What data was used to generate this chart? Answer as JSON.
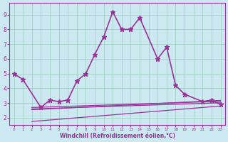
{
  "xlabel": "Windchill (Refroidissement éolien,°C)",
  "background_color": "#cce8f0",
  "grid_color": "#99ccbb",
  "line_color": "#993399",
  "xlim": [
    -0.5,
    23.5
  ],
  "ylim": [
    1.5,
    9.8
  ],
  "xticks": [
    0,
    1,
    2,
    3,
    4,
    5,
    6,
    7,
    8,
    9,
    10,
    11,
    12,
    13,
    14,
    15,
    16,
    17,
    18,
    19,
    20,
    21,
    22,
    23
  ],
  "yticks": [
    2,
    3,
    4,
    5,
    6,
    7,
    8,
    9
  ],
  "main_series": {
    "x": [
      0,
      1,
      3,
      4,
      5,
      6,
      7,
      8,
      9,
      10,
      11,
      12,
      13,
      14,
      16,
      17,
      18,
      19,
      21,
      22,
      23
    ],
    "y": [
      5.0,
      4.6,
      2.7,
      3.2,
      3.1,
      3.2,
      4.5,
      5.0,
      6.3,
      7.5,
      9.2,
      8.0,
      8.0,
      8.8,
      6.0,
      6.8,
      4.2,
      3.6,
      3.1,
      3.2,
      2.9
    ]
  },
  "flat_lines": [
    {
      "x": [
        2,
        3,
        4,
        5,
        6,
        7,
        8,
        9,
        10,
        11,
        12,
        13,
        14,
        15,
        16,
        17,
        18,
        19,
        20,
        21,
        22,
        23
      ],
      "y": [
        2.6,
        2.62,
        2.64,
        2.66,
        2.68,
        2.7,
        2.72,
        2.74,
        2.76,
        2.78,
        2.8,
        2.82,
        2.84,
        2.86,
        2.88,
        2.9,
        2.92,
        2.94,
        2.96,
        2.98,
        3.0,
        3.02
      ]
    },
    {
      "x": [
        2,
        3,
        4,
        5,
        6,
        7,
        8,
        9,
        10,
        11,
        12,
        13,
        14,
        15,
        16,
        17,
        18,
        19,
        20,
        21,
        22,
        23
      ],
      "y": [
        2.7,
        2.72,
        2.74,
        2.76,
        2.78,
        2.8,
        2.82,
        2.84,
        2.86,
        2.88,
        2.9,
        2.92,
        2.94,
        2.96,
        2.98,
        3.0,
        3.02,
        3.04,
        3.06,
        3.08,
        3.1,
        3.12
      ]
    },
    {
      "x": [
        2,
        3,
        4,
        5,
        6,
        7,
        8,
        9,
        10,
        11,
        12,
        13,
        14,
        15,
        16,
        17,
        18,
        19,
        20,
        21,
        22,
        23
      ],
      "y": [
        2.55,
        2.58,
        2.61,
        2.64,
        2.67,
        2.7,
        2.73,
        2.76,
        2.79,
        2.82,
        2.85,
        2.88,
        2.91,
        2.94,
        2.97,
        3.0,
        3.03,
        3.06,
        3.09,
        3.12,
        3.15,
        3.18
      ]
    },
    {
      "x": [
        2,
        3,
        4,
        5,
        6,
        7,
        8,
        9,
        10,
        11,
        12,
        13,
        14,
        15,
        16,
        17,
        18,
        19,
        20,
        21,
        22,
        23
      ],
      "y": [
        1.75,
        1.8,
        1.85,
        1.9,
        1.95,
        2.0,
        2.05,
        2.1,
        2.15,
        2.2,
        2.25,
        2.3,
        2.35,
        2.4,
        2.45,
        2.5,
        2.55,
        2.6,
        2.65,
        2.7,
        2.75,
        2.8
      ]
    }
  ]
}
